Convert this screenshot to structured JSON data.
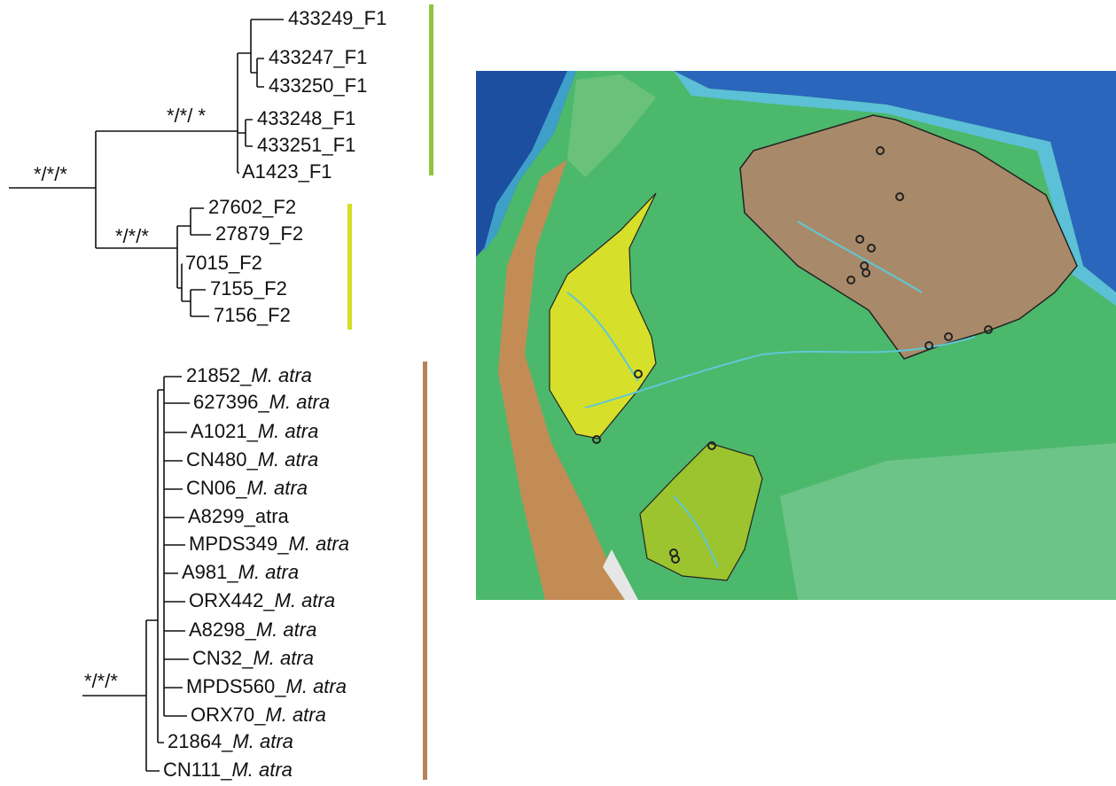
{
  "tree": {
    "root_support": "*/*/*",
    "f1_support": "*/*/ *",
    "f2_support": "*/*/*",
    "atra_support": "*/*/*",
    "f1_leaves": [
      "433249_F1",
      "433247_F1",
      "433250_F1",
      "433248_F1",
      "433251_F1",
      "A1423_F1"
    ],
    "f2_leaves": [
      "27602_F2",
      "27879_F2",
      "7015_F2",
      "7155_F2",
      "7156_F2"
    ],
    "atra_leaves": [
      {
        "code": "21852_",
        "species": "M. atra"
      },
      {
        "code": "627396_",
        "species": "M. atra"
      },
      {
        "code": "A1021_",
        "species": "M. atra"
      },
      {
        "code": "CN480_",
        "species": "M. atra"
      },
      {
        "code": "CN06_",
        "species": "M. atra"
      },
      {
        "code": "A8299_atra"
      },
      {
        "code": "MPDS349_",
        "species": "M. atra"
      },
      {
        "code": "A981_",
        "species": "M. atra"
      },
      {
        "code": "ORX442_",
        "species": "M. atra"
      },
      {
        "code": "A8298_",
        "species": "M. atra"
      },
      {
        "code": "CN32_",
        "species": "M. atra"
      },
      {
        "code": "MPDS560_",
        "species": "M. atra"
      },
      {
        "code": "ORX70_",
        "species": "M. atra"
      },
      {
        "code": "21864_",
        "species": "M. atra"
      },
      {
        "code": "CN111_",
        "species": "M. atra"
      }
    ]
  }
}
